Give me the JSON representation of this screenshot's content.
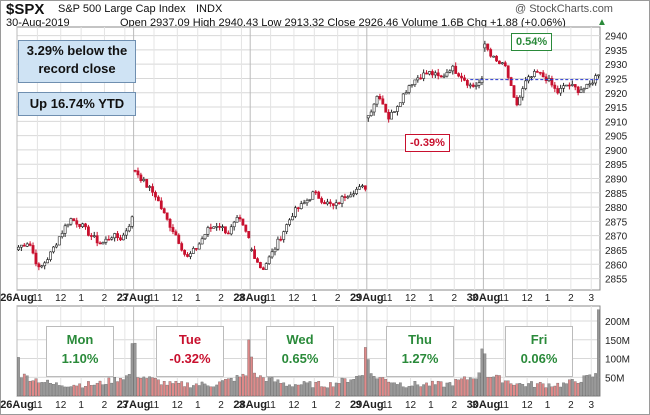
{
  "header": {
    "symbol": "$SPX",
    "name": "S&P 500 Large Cap Index",
    "exchange": "INDX",
    "date": "30-Aug-2019",
    "ohlc": "Open 2937.09  High 2940.43  Low 2913.32  Close 2926.46  Volume 1.6B  Chg +1.88 (+0.06%)",
    "watermark": "@ StockCharts.com",
    "arrow": "▲"
  },
  "annotations": {
    "record": "3.29% below the record close",
    "ytd": "Up 16.74% YTD",
    "high_callout": "0.54%",
    "low_callout": "-0.39%"
  },
  "colors": {
    "up": "#2a8a3a",
    "down": "#c8102e",
    "candle_up_fill": "#ffffff",
    "candle_down_fill": "#c8102e",
    "vol_up": "#999999",
    "vol_down": "#e08a8a",
    "prev_close_line": "#2233cc"
  },
  "chart_data": [
    {
      "type": "candlestick",
      "ylim": [
        2851,
        2943
      ],
      "yticks": [
        2855,
        2860,
        2865,
        2870,
        2875,
        2880,
        2885,
        2890,
        2895,
        2900,
        2905,
        2910,
        2915,
        2920,
        2925,
        2930,
        2935,
        2940
      ],
      "xlabels": [
        {
          "label": "26Aug",
          "bar": 0
        },
        {
          "label": "11",
          "bar": 7
        },
        {
          "label": "12",
          "bar": 15
        },
        {
          "label": "1",
          "bar": 22
        },
        {
          "label": "2",
          "bar": 30
        },
        {
          "label": "3",
          "bar": 37
        },
        {
          "label": "27Aug",
          "bar": 40
        },
        {
          "label": "11",
          "bar": 47
        },
        {
          "label": "12",
          "bar": 55
        },
        {
          "label": "1",
          "bar": 62
        },
        {
          "label": "2",
          "bar": 70
        },
        {
          "label": "3",
          "bar": 77
        },
        {
          "label": "28Aug",
          "bar": 80
        },
        {
          "label": "11",
          "bar": 87
        },
        {
          "label": "12",
          "bar": 95
        },
        {
          "label": "1",
          "bar": 102
        },
        {
          "label": "2",
          "bar": 110
        },
        {
          "label": "3",
          "bar": 117
        },
        {
          "label": "29Aug",
          "bar": 120
        },
        {
          "label": "11",
          "bar": 127
        },
        {
          "label": "12",
          "bar": 135
        },
        {
          "label": "1",
          "bar": 142
        },
        {
          "label": "2",
          "bar": 150
        },
        {
          "label": "3",
          "bar": 157
        },
        {
          "label": "30Aug",
          "bar": 160
        },
        {
          "label": "11",
          "bar": 167
        },
        {
          "label": "12",
          "bar": 175
        },
        {
          "label": "1",
          "bar": 182
        },
        {
          "label": "2",
          "bar": 190
        },
        {
          "label": "3",
          "bar": 197
        }
      ],
      "prev_close_line": {
        "value": 2924.58,
        "from_bar": 155
      },
      "day_anchors": [
        [
          2866,
          2868,
          2858,
          2863,
          2870,
          2876,
          2874,
          2870,
          2867,
          2870,
          2869,
          2876
        ],
        [
          2893,
          2888,
          2884,
          2876,
          2870,
          2862,
          2866,
          2872,
          2874,
          2871,
          2876,
          2869
        ],
        [
          2865,
          2858,
          2864,
          2871,
          2878,
          2881,
          2885,
          2882,
          2880,
          2884,
          2886,
          2887
        ],
        [
          2912,
          2920,
          2911,
          2917,
          2923,
          2926,
          2927,
          2925,
          2929,
          2926,
          2922,
          2924
        ],
        [
          2937,
          2931,
          2929,
          2915,
          2924,
          2927,
          2925,
          2920,
          2923,
          2921,
          2922,
          2927
        ]
      ],
      "volume_ylim": [
        0,
        240
      ],
      "volume_yticks": [
        {
          "v": 50,
          "label": "50M"
        },
        {
          "v": 100,
          "label": "100M"
        },
        {
          "v": 150,
          "label": "150M"
        },
        {
          "v": 200,
          "label": "200M"
        }
      ]
    }
  ],
  "days": [
    {
      "name": "Mon",
      "pct": "1.10%",
      "color": "#2a8a3a"
    },
    {
      "name": "Tue",
      "pct": "-0.32%",
      "color": "#c8102e"
    },
    {
      "name": "Wed",
      "pct": "0.65%",
      "color": "#2a8a3a"
    },
    {
      "name": "Thu",
      "pct": "1.27%",
      "color": "#2a8a3a"
    },
    {
      "name": "Fri",
      "pct": "0.06%",
      "color": "#2a8a3a"
    }
  ]
}
